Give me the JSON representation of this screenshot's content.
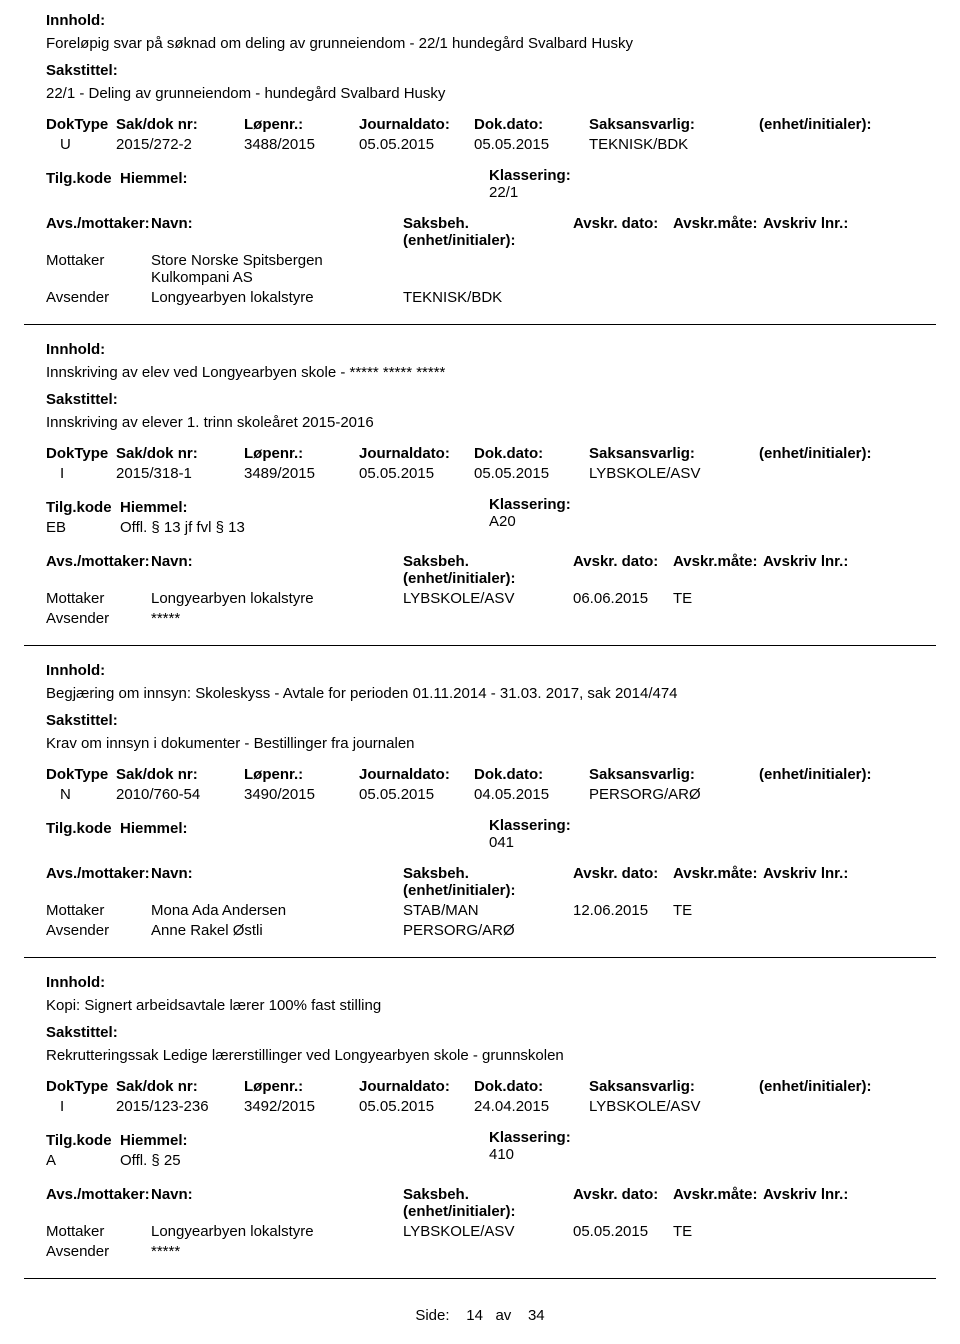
{
  "labels": {
    "innhold": "Innhold:",
    "sakstittel": "Sakstittel:",
    "doktype": "DokType",
    "sakdok": "Sak/dok nr:",
    "lopenr": "Løpenr.:",
    "jdato": "Journaldato:",
    "dokdato": "Dok.dato:",
    "saksansv": "Saksansvarlig:",
    "enhet": "(enhet/initialer):",
    "tilgkode": "Tilg.kode",
    "hjemmel": "Hiemmel:",
    "klass": "Klassering:",
    "avsmott": "Avs./mottaker:",
    "navn": "Navn:",
    "saksbeh": "Saksbeh.",
    "enhet2": "(enhet/initialer):",
    "avskrdato": "Avskr. dato:",
    "avskrmate": "Avskr.måte:",
    "avskrivlnr": "Avskriv lnr.:",
    "mottaker": "Mottaker",
    "avsender": "Avsender"
  },
  "footer": {
    "side": "Side:",
    "page": "14",
    "av": "av",
    "total": "34"
  },
  "entries": [
    {
      "innhold": "Foreløpig svar på søknad om deling av grunneiendom - 22/1 hundegård Svalbard Husky",
      "sakstittel": "22/1 - Deling av grunneiendom - hundegård Svalbard Husky",
      "doktype": "U",
      "sakdok": "2015/272-2",
      "lopenr": "3488/2015",
      "jdato": "05.05.2015",
      "dokdato": "05.05.2015",
      "saksansv": "TEKNISK/BDK",
      "enhet": "",
      "tilgkode": "",
      "hjemmel": "",
      "klass": "22/1",
      "parts": [
        {
          "role": "Mottaker",
          "navn": "Store Norske Spitsbergen Kulkompani AS",
          "saksbeh": "",
          "adato": "",
          "amate": "",
          "alnr": ""
        },
        {
          "role": "Avsender",
          "navn": "Longyearbyen lokalstyre",
          "saksbeh": "TEKNISK/BDK",
          "adato": "",
          "amate": "",
          "alnr": ""
        }
      ]
    },
    {
      "innhold": "Innskriving av elev ved Longyearbyen skole - ***** ***** *****",
      "sakstittel": "Innskriving av elever 1. trinn skoleåret 2015-2016",
      "doktype": "I",
      "sakdok": "2015/318-1",
      "lopenr": "3489/2015",
      "jdato": "05.05.2015",
      "dokdato": "05.05.2015",
      "saksansv": "LYBSKOLE/ASV",
      "enhet": "",
      "tilgkode": "EB",
      "hjemmel": "Offl. § 13 jf fvl § 13",
      "klass": "A20",
      "parts": [
        {
          "role": "Mottaker",
          "navn": "Longyearbyen lokalstyre",
          "saksbeh": "LYBSKOLE/ASV",
          "adato": "06.06.2015",
          "amate": "TE",
          "alnr": ""
        },
        {
          "role": "Avsender",
          "navn": "*****",
          "saksbeh": "",
          "adato": "",
          "amate": "",
          "alnr": ""
        }
      ]
    },
    {
      "innhold": "Begjæring om innsyn: Skoleskyss - Avtale for perioden 01.11.2014 - 31.03. 2017, sak 2014/474",
      "sakstittel": "Krav om innsyn i dokumenter - Bestillinger fra journalen",
      "doktype": "N",
      "sakdok": "2010/760-54",
      "lopenr": "3490/2015",
      "jdato": "05.05.2015",
      "dokdato": "04.05.2015",
      "saksansv": "PERSORG/ARØ",
      "enhet": "",
      "tilgkode": "",
      "hjemmel": "",
      "klass": "041",
      "parts": [
        {
          "role": "Mottaker",
          "navn": "Mona Ada Andersen",
          "saksbeh": "STAB/MAN",
          "adato": "12.06.2015",
          "amate": "TE",
          "alnr": ""
        },
        {
          "role": "Avsender",
          "navn": "Anne Rakel Østli",
          "saksbeh": "PERSORG/ARØ",
          "adato": "",
          "amate": "",
          "alnr": ""
        }
      ]
    },
    {
      "innhold": "Kopi: Signert arbeidsavtale lærer 100% fast stilling",
      "sakstittel": "Rekrutteringssak Ledige lærerstillinger ved Longyearbyen skole - grunnskolen",
      "doktype": "I",
      "sakdok": "2015/123-236",
      "lopenr": "3492/2015",
      "jdato": "05.05.2015",
      "dokdato": "24.04.2015",
      "saksansv": "LYBSKOLE/ASV",
      "enhet": "",
      "tilgkode": "A",
      "hjemmel": "Offl. § 25",
      "klass": "410",
      "parts": [
        {
          "role": "Mottaker",
          "navn": "Longyearbyen lokalstyre",
          "saksbeh": "LYBSKOLE/ASV",
          "adato": "05.05.2015",
          "amate": "TE",
          "alnr": ""
        },
        {
          "role": "Avsender",
          "navn": "*****",
          "saksbeh": "",
          "adato": "",
          "amate": "",
          "alnr": ""
        }
      ]
    }
  ]
}
